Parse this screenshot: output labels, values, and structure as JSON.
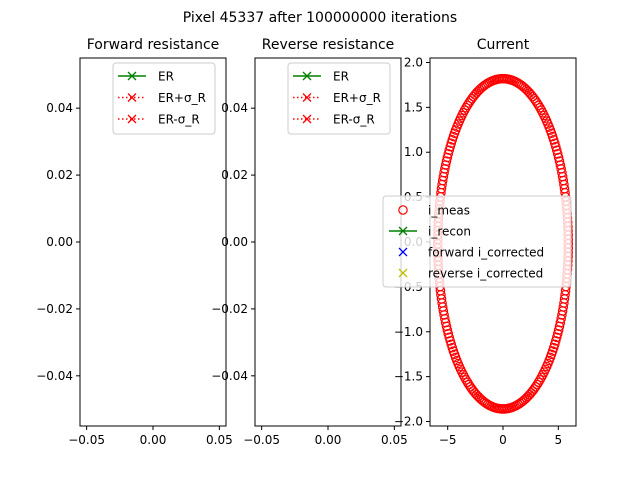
{
  "suptitle": "Pixel 45337 after 100000000 iterations",
  "chart_data": [
    {
      "type": "line",
      "title": "Forward resistance",
      "xlim": [
        -0.055,
        0.055
      ],
      "ylim": [
        -0.055,
        0.055
      ],
      "xticks": [
        "−0.05",
        "0.00",
        "0.05"
      ],
      "xtick_values": [
        -0.05,
        0.0,
        0.05
      ],
      "yticks": [
        "0.04",
        "0.02",
        "0.00",
        "−0.02",
        "−0.04"
      ],
      "ytick_values": [
        0.04,
        0.02,
        0.0,
        -0.02,
        -0.04
      ],
      "legend_position": "top-right",
      "series": [
        {
          "name": "ER",
          "values": [],
          "color": "#008000",
          "linestyle": "solid",
          "marker": "x"
        },
        {
          "name": "ER+σ_R",
          "values": [],
          "color": "#ff0000",
          "linestyle": "dotted",
          "marker": "x"
        },
        {
          "name": "ER-σ_R",
          "values": [],
          "color": "#ff0000",
          "linestyle": "dotted",
          "marker": "x"
        }
      ]
    },
    {
      "type": "line",
      "title": "Reverse resistance",
      "xlim": [
        -0.055,
        0.055
      ],
      "ylim": [
        -0.055,
        0.055
      ],
      "xticks": [
        "−0.05",
        "0.00",
        "0.05"
      ],
      "xtick_values": [
        -0.05,
        0.0,
        0.05
      ],
      "yticks": [
        "0.04",
        "0.02",
        "0.00",
        "−0.02",
        "−0.04"
      ],
      "ytick_values": [
        0.04,
        0.02,
        0.0,
        -0.02,
        -0.04
      ],
      "legend_position": "top-right",
      "series": [
        {
          "name": "ER",
          "values": [],
          "color": "#008000",
          "linestyle": "solid",
          "marker": "x"
        },
        {
          "name": "ER+σ_R",
          "values": [],
          "color": "#ff0000",
          "linestyle": "dotted",
          "marker": "x"
        },
        {
          "name": "ER-σ_R",
          "values": [],
          "color": "#ff0000",
          "linestyle": "dotted",
          "marker": "x"
        }
      ]
    },
    {
      "type": "scatter",
      "title": "Current",
      "xlim": [
        -6.6,
        6.6
      ],
      "ylim": [
        -2.05,
        2.05
      ],
      "xticks": [
        "−5",
        "0",
        "5"
      ],
      "xtick_values": [
        -5,
        0,
        5
      ],
      "yticks": [
        "2.0",
        "1.5",
        "1.0",
        "0.5",
        "0.0",
        "−0.5",
        "−1.0",
        "−1.5",
        "−2.0"
      ],
      "ytick_values": [
        2.0,
        1.5,
        1.0,
        0.5,
        0.0,
        -0.5,
        -1.0,
        -1.5,
        -2.0
      ],
      "legend_position": "center",
      "loop": {
        "x_center": 0.0,
        "x_amplitude": 5.9,
        "y_center": -0.02,
        "y_amplitude": 1.84
      },
      "series": [
        {
          "name": "i_meas",
          "color": "#ff0000",
          "marker": "o"
        },
        {
          "name": "i_recon",
          "color": "#008000",
          "marker": "x",
          "linestyle": "solid"
        },
        {
          "name": "forward i_corrected",
          "color": "#0000ff",
          "marker": "x"
        },
        {
          "name": "reverse i_corrected",
          "color": "#bfbf00",
          "marker": "x"
        }
      ]
    }
  ]
}
